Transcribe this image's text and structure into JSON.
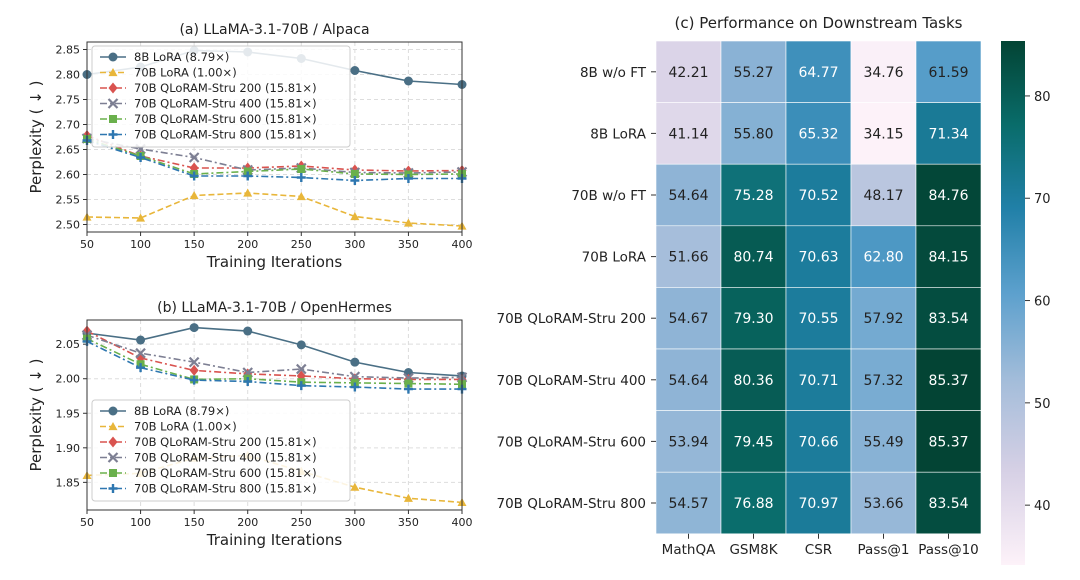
{
  "chart_data": [
    {
      "type": "line",
      "title": "(a) LLaMA-3.1-70B / Alpaca",
      "xlabel": "Training Iterations",
      "ylabel": "Perplexity ( ↓ )",
      "xlim": [
        50,
        400
      ],
      "ylim": [
        2.485,
        2.865
      ],
      "x_ticks": [
        "50",
        "100",
        "150",
        "200",
        "250",
        "300",
        "350",
        "400"
      ],
      "y_ticks": [
        "2.50",
        "2.55",
        "2.60",
        "2.65",
        "2.70",
        "2.75",
        "2.80",
        "2.85"
      ],
      "grid": true,
      "legend_position": "upper-left",
      "x": [
        50,
        100,
        150,
        200,
        250,
        300,
        350,
        400
      ],
      "series": [
        {
          "name": "8B LoRA (8.79×)",
          "color": "#4a6f85",
          "marker": "circle",
          "dash": "solid",
          "values": [
            2.8,
            2.815,
            2.848,
            2.845,
            2.832,
            2.808,
            2.787,
            2.78
          ]
        },
        {
          "name": "70B LoRA (1.00×)",
          "color": "#e8b63a",
          "marker": "triangle",
          "dash": "dashed",
          "values": [
            2.515,
            2.513,
            2.558,
            2.563,
            2.556,
            2.516,
            2.503,
            2.497
          ]
        },
        {
          "name": "70B QLoRAM-Stru 200 (15.81×)",
          "color": "#d9534f",
          "marker": "diamond",
          "dash": "dashdot",
          "values": [
            2.678,
            2.637,
            2.613,
            2.613,
            2.617,
            2.609,
            2.607,
            2.608
          ]
        },
        {
          "name": "70B QLoRAM-Stru 400 (15.81×)",
          "color": "#7d7f93",
          "marker": "x",
          "dash": "dashdot",
          "values": [
            2.672,
            2.651,
            2.634,
            2.609,
            2.613,
            2.604,
            2.603,
            2.605
          ]
        },
        {
          "name": "70B QLoRAM-Stru 600 (15.81×)",
          "color": "#6ab04c",
          "marker": "square",
          "dash": "dashdot",
          "values": [
            2.671,
            2.637,
            2.601,
            2.606,
            2.611,
            2.601,
            2.6,
            2.601
          ]
        },
        {
          "name": "70B QLoRAM-Stru 800 (15.81×)",
          "color": "#2e77b0",
          "marker": "plus",
          "dash": "dashdot",
          "values": [
            2.668,
            2.634,
            2.597,
            2.597,
            2.594,
            2.588,
            2.592,
            2.592
          ]
        }
      ]
    },
    {
      "type": "line",
      "title": "(b) LLaMA-3.1-70B / OpenHermes",
      "xlabel": "Training Iterations",
      "ylabel": "Perplexity ( ↓ )",
      "xlim": [
        50,
        400
      ],
      "ylim": [
        1.81,
        2.085
      ],
      "x_ticks": [
        "50",
        "100",
        "150",
        "200",
        "250",
        "300",
        "350",
        "400"
      ],
      "y_ticks": [
        "1.85",
        "1.90",
        "1.95",
        "2.00",
        "2.05"
      ],
      "grid": true,
      "legend_position": "lower-left",
      "x": [
        50,
        100,
        150,
        200,
        250,
        300,
        350,
        400
      ],
      "series": [
        {
          "name": "8B LoRA (8.79×)",
          "color": "#4a6f85",
          "marker": "circle",
          "dash": "solid",
          "values": [
            2.066,
            2.056,
            2.074,
            2.069,
            2.049,
            2.024,
            2.009,
            2.004
          ]
        },
        {
          "name": "70B LoRA (1.00×)",
          "color": "#e8b63a",
          "marker": "triangle",
          "dash": "dashed",
          "values": [
            1.86,
            1.863,
            1.885,
            1.889,
            1.866,
            1.843,
            1.827,
            1.821
          ]
        },
        {
          "name": "70B QLoRAM-Stru 200 (15.81×)",
          "color": "#d9534f",
          "marker": "diamond",
          "dash": "dashdot",
          "values": [
            2.069,
            2.03,
            2.012,
            2.007,
            2.004,
            2.0,
            1.999,
            1.999
          ]
        },
        {
          "name": "70B QLoRAM-Stru 400 (15.81×)",
          "color": "#7d7f93",
          "marker": "x",
          "dash": "dashdot",
          "values": [
            2.063,
            2.037,
            2.024,
            2.009,
            2.014,
            2.003,
            2.001,
            2.002
          ]
        },
        {
          "name": "70B QLoRAM-Stru 600 (15.81×)",
          "color": "#6ab04c",
          "marker": "square",
          "dash": "dashdot",
          "values": [
            2.058,
            2.021,
            1.999,
            2.0,
            1.995,
            1.994,
            1.993,
            1.992
          ]
        },
        {
          "name": "70B QLoRAM-Stru 800 (15.81×)",
          "color": "#2e77b0",
          "marker": "plus",
          "dash": "dashdot",
          "values": [
            2.054,
            2.016,
            1.998,
            1.996,
            1.99,
            1.988,
            1.985,
            1.985
          ]
        }
      ]
    },
    {
      "type": "heatmap",
      "title": "(c) Performance on Downstream Tasks",
      "columns": [
        "MathQA",
        "GSM8K",
        "CSR",
        "Pass@1",
        "Pass@10"
      ],
      "rows": [
        "8B w/o FT",
        "8B LoRA",
        "70B w/o FT",
        "70B LoRA",
        "70B QLoRAM-Stru 200",
        "70B QLoRAM-Stru 400",
        "70B QLoRAM-Stru 600",
        "70B QLoRAM-Stru 800"
      ],
      "values": [
        [
          42.21,
          55.27,
          64.77,
          34.76,
          61.59
        ],
        [
          41.14,
          55.8,
          65.32,
          34.15,
          71.34
        ],
        [
          54.64,
          75.28,
          70.52,
          48.17,
          84.76
        ],
        [
          51.66,
          80.74,
          70.63,
          62.8,
          84.15
        ],
        [
          54.67,
          79.3,
          70.55,
          57.92,
          83.54
        ],
        [
          54.64,
          80.36,
          70.71,
          57.32,
          85.37
        ],
        [
          53.94,
          79.45,
          70.66,
          55.49,
          85.37
        ],
        [
          54.57,
          76.88,
          70.97,
          53.66,
          83.54
        ]
      ],
      "colorbar": {
        "range": [
          34.15,
          85.37
        ],
        "ticks": [
          "40",
          "50",
          "60",
          "70",
          "80"
        ]
      }
    }
  ]
}
